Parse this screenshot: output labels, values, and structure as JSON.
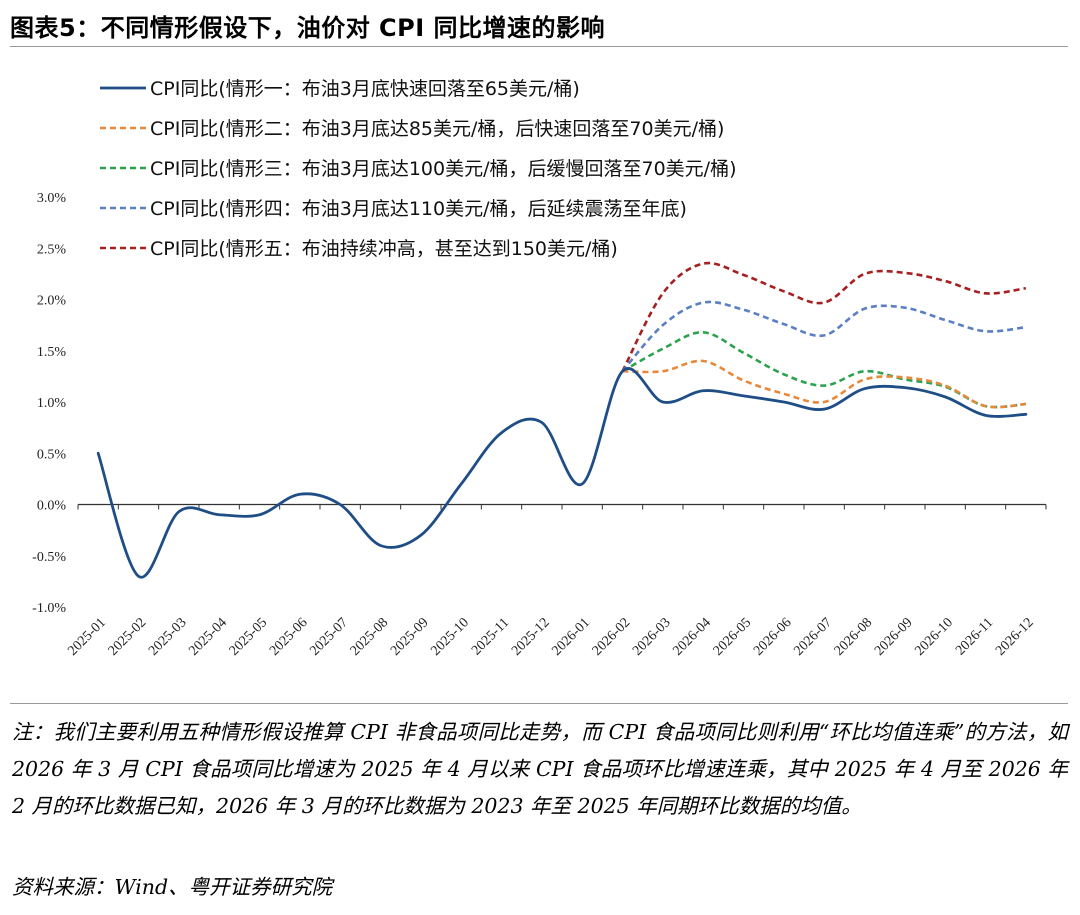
{
  "title": "图表5：不同情形假设下，油价对 CPI 同比增速的影响",
  "chart_data": {
    "type": "line",
    "title": "图表5：不同情形假设下，油价对 CPI 同比增速的影响",
    "xlabel": "",
    "ylabel": "",
    "ylim": [
      -1.0,
      3.0
    ],
    "y_ticks": [
      "-1.0%",
      "-0.5%",
      "0.0%",
      "0.5%",
      "1.0%",
      "1.5%",
      "2.0%",
      "2.5%",
      "3.0%"
    ],
    "y_tick_values": [
      -1.0,
      -0.5,
      0.0,
      0.5,
      1.0,
      1.5,
      2.0,
      2.5,
      3.0
    ],
    "categories": [
      "2025-01",
      "2025-02",
      "2025-03",
      "2025-04",
      "2025-05",
      "2025-06",
      "2025-07",
      "2025-08",
      "2025-09",
      "2025-10",
      "2025-11",
      "2025-12",
      "2026-01",
      "2026-02",
      "2026-03",
      "2026-04",
      "2026-05",
      "2026-06",
      "2026-07",
      "2026-08",
      "2026-09",
      "2026-10",
      "2026-11",
      "2026-12"
    ],
    "legend_position": "top-left",
    "series": [
      {
        "name": "CPI同比(情形一：布油3月底快速回落至65美元/桶)",
        "color": "#1f4e87",
        "dash": false,
        "values": [
          0.5,
          -0.7,
          -0.07,
          -0.1,
          -0.1,
          0.1,
          0.0,
          -0.4,
          -0.3,
          0.2,
          0.7,
          0.8,
          0.2,
          1.3,
          1.0,
          1.11,
          1.06,
          1.0,
          0.93,
          1.13,
          1.14,
          1.05,
          0.87,
          0.88
        ]
      },
      {
        "name": "CPI同比(情形二：布油3月底达85美元/桶，后快速回落至70美元/桶)",
        "color": "#e8883a",
        "dash": true,
        "values": [
          null,
          null,
          null,
          null,
          null,
          null,
          null,
          null,
          null,
          null,
          null,
          null,
          null,
          1.3,
          1.3,
          1.4,
          1.21,
          1.08,
          1.0,
          1.22,
          1.24,
          1.16,
          0.96,
          0.98
        ]
      },
      {
        "name": "CPI同比(情形三：布油3月底达100美元/桶，后缓慢回落至70美元/桶)",
        "color": "#2ca24e",
        "dash": true,
        "values": [
          null,
          null,
          null,
          null,
          null,
          null,
          null,
          null,
          null,
          null,
          null,
          null,
          null,
          1.3,
          1.52,
          1.68,
          1.48,
          1.27,
          1.16,
          1.3,
          1.22,
          1.15,
          0.96,
          0.98
        ]
      },
      {
        "name": "CPI同比(情形四：布油3月底达110美元/桶，后延续震荡至年底)",
        "color": "#5a7fc2",
        "dash": true,
        "values": [
          null,
          null,
          null,
          null,
          null,
          null,
          null,
          null,
          null,
          null,
          null,
          null,
          null,
          1.3,
          1.75,
          1.97,
          1.9,
          1.76,
          1.65,
          1.91,
          1.92,
          1.8,
          1.69,
          1.73
        ]
      },
      {
        "name": "CPI同比(情形五：布油持续冲高，甚至达到150美元/桶)",
        "color": "#a52121",
        "dash": true,
        "values": [
          null,
          null,
          null,
          null,
          null,
          null,
          null,
          null,
          null,
          null,
          null,
          null,
          null,
          1.3,
          2.06,
          2.35,
          2.24,
          2.08,
          1.97,
          2.25,
          2.26,
          2.18,
          2.06,
          2.11
        ]
      }
    ]
  },
  "note": "注：我们主要利用五种情形假设推算 CPI 非食品项同比走势，而 CPI 食品项同比则利用“环比均值连乘”的方法，如 2026 年 3 月 CPI 食品项同比增速为 2025 年 4 月以来 CPI 食品项环比增速连乘，其中 2025 年 4 月至 2026 年 2 月的环比数据已知，2026 年 3 月的环比数据为 2023 年至 2025 年同期环比数据的均值。",
  "source": "资料来源：Wind、粤开证券研究院"
}
